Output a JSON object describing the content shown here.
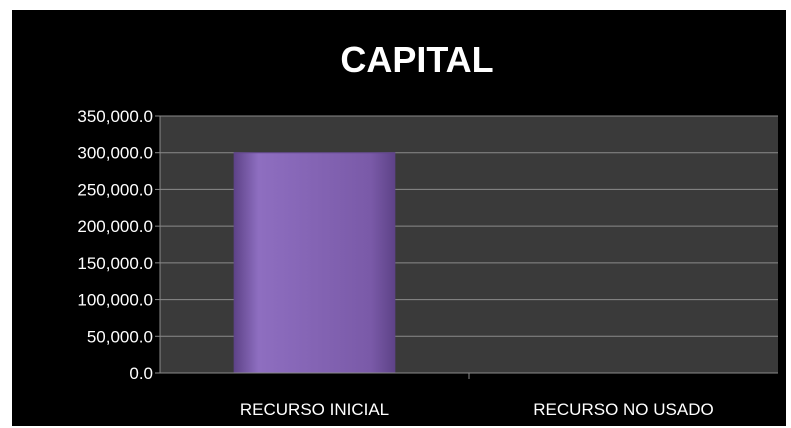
{
  "chart_data": {
    "type": "bar",
    "title": "CAPITAL",
    "xlabel": "",
    "ylabel": "",
    "categories": [
      "RECURSO INICIAL",
      "RECURSO NO USADO"
    ],
    "values": [
      300000,
      0
    ],
    "ylim": [
      0,
      350000
    ],
    "yticks": [
      "0.0",
      "50,000.0",
      "100,000.0",
      "150,000.0",
      "200,000.0",
      "250,000.0",
      "300,000.0",
      "350,000.0"
    ],
    "grid": true,
    "legend": "none",
    "colors": {
      "background": "#000000",
      "plot_area": "#3a3a3a",
      "grid": "#8a8a8a",
      "bar": "#7a5aa8",
      "bar_light": "#8e6ec0",
      "bar_dark": "#5e4388",
      "text": "#ffffff"
    }
  }
}
